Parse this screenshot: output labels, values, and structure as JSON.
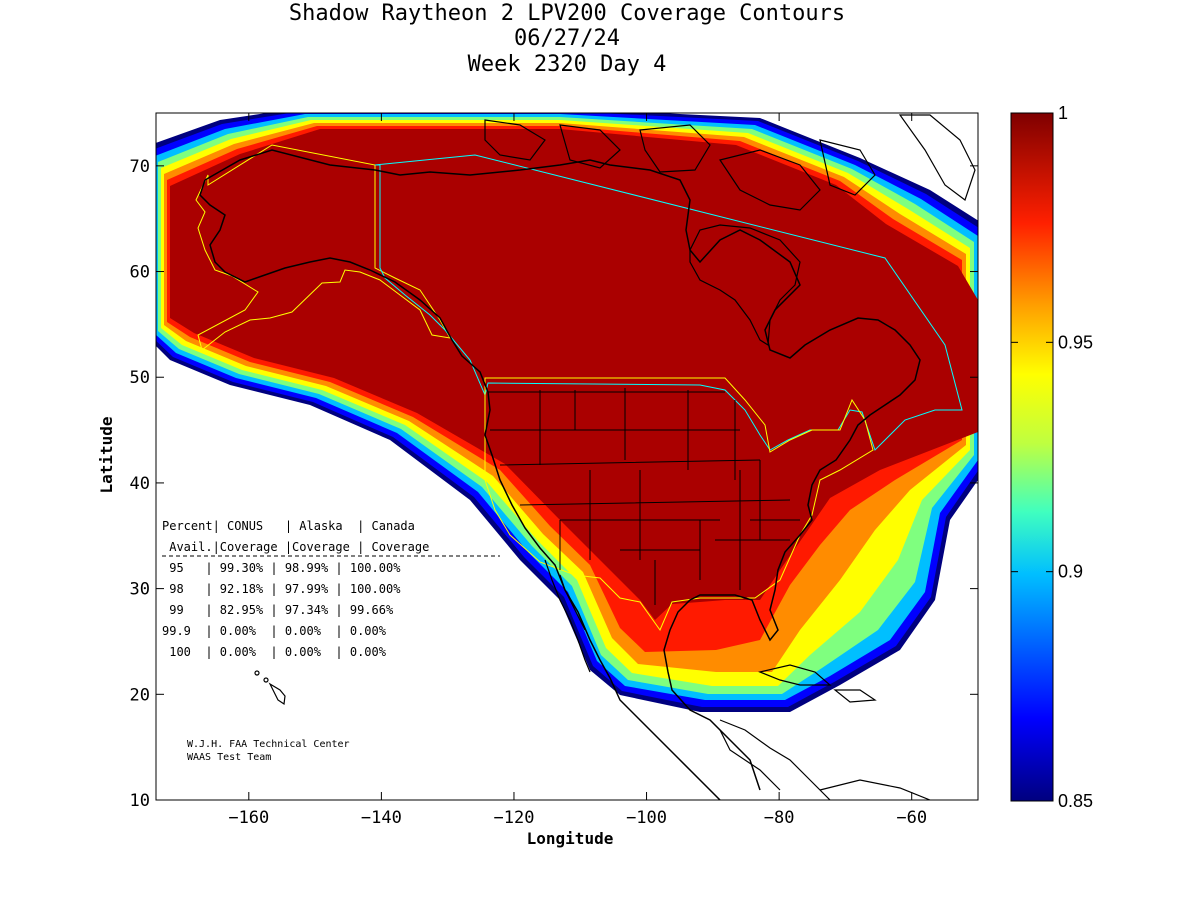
{
  "title": {
    "line1": "Shadow Raytheon 2 LPV200 Coverage Contours",
    "line2": "06/27/24",
    "line3": "Week 2320 Day 4"
  },
  "axes": {
    "xlabel": "Longitude",
    "ylabel": "Latitude",
    "xlim": [
      -174,
      -50
    ],
    "ylim": [
      10,
      75
    ],
    "xticks": [
      -160,
      -140,
      -120,
      -100,
      -80,
      -60
    ],
    "yticks": [
      10,
      20,
      30,
      40,
      50,
      60,
      70
    ]
  },
  "colorbar": {
    "range": [
      0.85,
      1
    ],
    "ticks": [
      {
        "value": 1,
        "label": "1"
      },
      {
        "value": 0.95,
        "label": "0.95"
      },
      {
        "value": 0.9,
        "label": "0.9"
      },
      {
        "value": 0.85,
        "label": "0.85"
      }
    ],
    "colors": [
      "#00007f",
      "#0000ff",
      "#007fff",
      "#00ffff",
      "#7fff7f",
      "#ffff00",
      "#ff7f00",
      "#ff0000",
      "#aa0000"
    ]
  },
  "table": {
    "header1": [
      "Percent",
      "CONUS",
      "Alaska",
      "Canada"
    ],
    "header2": [
      "Avail.",
      "Coverage",
      "Coverage",
      "Coverage"
    ],
    "rows": [
      [
        "95",
        "99.30%",
        "98.99%",
        "100.00%"
      ],
      [
        "98",
        "92.18%",
        "97.99%",
        "100.00%"
      ],
      [
        "99",
        "82.95%",
        "97.34%",
        "99.66%"
      ],
      [
        "99.9",
        "0.00%",
        "0.00%",
        "0.00%"
      ],
      [
        "100",
        "0.00%",
        "0.00%",
        "0.00%"
      ]
    ]
  },
  "credit": {
    "line1": "W.J.H. FAA Technical Center",
    "line2": "WAAS Test Team"
  },
  "colors": {
    "full": "#aa0000",
    "red": "#ff0000",
    "orange": "#ff7f00",
    "yellow": "#ffff00",
    "green": "#7fff7f",
    "cyan": "#00ffff",
    "blue": "#0000ff",
    "navy": "#00007f",
    "region_yellow": "#ffff00",
    "region_cyan": "#00ffff"
  }
}
